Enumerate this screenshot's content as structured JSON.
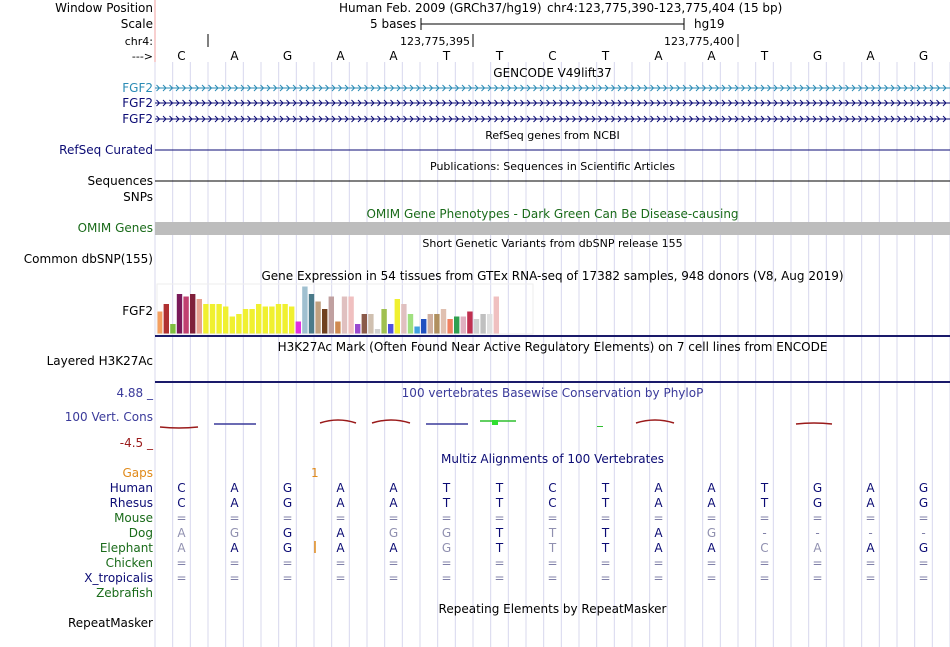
{
  "header": {
    "window_position_label": "Window Position",
    "scale_label": "Scale",
    "chrom_label": "chr4:",
    "arrow_label": "--->",
    "assembly_text": "Human Feb. 2009 (GRCh37/hg19)",
    "position_text": "chr4:123,775,390-123,775,404 (15 bp)",
    "scale_text": "5 bases",
    "db_text": "hg19",
    "coord_left": "123,775,395",
    "coord_right": "123,775,400"
  },
  "sequence": [
    "C",
    "A",
    "G",
    "A",
    "A",
    "T",
    "T",
    "C",
    "T",
    "A",
    "A",
    "T",
    "G",
    "A",
    "G"
  ],
  "tracks": {
    "gencode": {
      "title": "GENCODE V49lift37",
      "items": [
        "FGF2",
        "FGF2",
        "FGF2"
      ],
      "color": "#2a8bb5"
    },
    "refseq": {
      "title": "RefSeq genes from NCBI",
      "label": "RefSeq Curated",
      "color": "#0b0b74"
    },
    "publications": {
      "title": "Publications: Sequences in Scientific Articles",
      "label1": "Sequences",
      "label2": "SNPs"
    },
    "omim": {
      "title": "OMIM Gene Phenotypes - Dark Green Can Be Disease-causing",
      "label": "OMIM Genes",
      "color": "#1a6b1a"
    },
    "dbsnp": {
      "title": "Short Genetic Variants from dbSNP release 155",
      "label": "Common dbSNP(155)"
    },
    "gtex": {
      "title": "Gene Expression in 54 tissues from GTEx RNA-seq of 17382 samples, 948 donors (V8, Aug 2019)",
      "label": "FGF2"
    },
    "h3k27ac": {
      "title": "H3K27Ac Mark (Often Found Near Active Regulatory Elements) on 7 cell lines from ENCODE",
      "label": "Layered H3K27Ac"
    },
    "phylop": {
      "title": "100 vertebrates Basewise Conservation by PhyloP",
      "label": "100 Vert. Cons",
      "max_label": "4.88 _",
      "min_label": "-4.5 _",
      "color": "#3a3a9a",
      "neg_color": "#9a1a1a"
    },
    "multiz": {
      "title": "Multiz Alignments of 100 Vertebrates",
      "gaps_label": "Gaps",
      "gap_count": "1",
      "species": [
        {
          "name": "Human",
          "color": "#0b0b74",
          "bases": [
            "C",
            "A",
            "G",
            "A",
            "A",
            "T",
            "T",
            "C",
            "T",
            "A",
            "A",
            "T",
            "G",
            "A",
            "G"
          ]
        },
        {
          "name": "Rhesus",
          "color": "#0b0b74",
          "bases": [
            "C",
            "A",
            "G",
            "A",
            "A",
            "T",
            "T",
            "C",
            "T",
            "A",
            "A",
            "T",
            "G",
            "A",
            "G"
          ]
        },
        {
          "name": "Mouse",
          "color": "#1a6b1a",
          "bases": [
            "=",
            "=",
            "=",
            "=",
            "=",
            "=",
            "=",
            "=",
            "=",
            "=",
            "=",
            "=",
            "=",
            "=",
            "="
          ]
        },
        {
          "name": "Dog",
          "color": "#1a6b1a",
          "bases": [
            "A",
            "G",
            "G",
            "A",
            "G",
            "G",
            "T",
            "T",
            "T",
            "A",
            "G",
            "-",
            "-",
            "-",
            "-"
          ]
        },
        {
          "name": "Elephant",
          "color": "#1a6b1a",
          "bases": [
            "A",
            "A",
            "G",
            "A",
            "A",
            "G",
            "T",
            "T",
            "T",
            "A",
            "A",
            "C",
            "A",
            "A",
            "G"
          ]
        },
        {
          "name": "Chicken",
          "color": "#1a6b1a",
          "bases": [
            "=",
            "=",
            "=",
            "=",
            "=",
            "=",
            "=",
            "=",
            "=",
            "=",
            "=",
            "=",
            "=",
            "=",
            "="
          ]
        },
        {
          "name": "X_tropicalis",
          "color": "#0b0b74",
          "bases": [
            "=",
            "=",
            "=",
            "=",
            "=",
            "=",
            "=",
            "=",
            "=",
            "=",
            "=",
            "=",
            "=",
            "=",
            "="
          ]
        },
        {
          "name": "Zebrafish",
          "color": "#1a6b1a",
          "bases": []
        }
      ]
    },
    "repeatmasker": {
      "title": "Repeating Elements by RepeatMasker",
      "label": "RepeatMasker"
    }
  },
  "chart_data": {
    "type": "bar",
    "title": "Gene Expression in 54 tissues from GTEx RNA-seq of 17382 samples, 948 donors (V8, Aug 2019)",
    "values": [
      9,
      12,
      4,
      16,
      15,
      16,
      14,
      12,
      12,
      12,
      11,
      7,
      8,
      10,
      10,
      12,
      11,
      11,
      12,
      12,
      11,
      5,
      19,
      16,
      13,
      10,
      15,
      5,
      15,
      15,
      4,
      8,
      8,
      2,
      10,
      4,
      14,
      12,
      8,
      3,
      6,
      8,
      8,
      10,
      6,
      7,
      7,
      9,
      6,
      8,
      8,
      15,
      0,
      0
    ],
    "colors": [
      "#f4a060",
      "#b03030",
      "#7fbf3f",
      "#7a1a5a",
      "#c04070",
      "#80203a",
      "#e8a090",
      "#f0f030",
      "#f0f030",
      "#f0f030",
      "#f0f030",
      "#f0f030",
      "#f0f030",
      "#f0f030",
      "#f0f030",
      "#f0f030",
      "#f0f030",
      "#f0f030",
      "#f0f030",
      "#f0f030",
      "#f0f030",
      "#e030e0",
      "#a0c0d0",
      "#4a7a8a",
      "#c0a080",
      "#704020",
      "#c0a0a0",
      "#d08a50",
      "#e0c0c0",
      "#f0c0c0",
      "#9a4ad0",
      "#8a5a4a",
      "#d0c0b0",
      "#d0d0d0",
      "#a0c050",
      "#5050e0",
      "#f0f030",
      "#e0c0c0",
      "#a0e080",
      "#40a0e0",
      "#2050c0",
      "#d0b0a0",
      "#b09060",
      "#e0c0b0",
      "#f08060",
      "#30a050",
      "#e0b0c0",
      "#c03050",
      "#d0d0d0",
      "#c0c0c0",
      "#e0e0e0",
      "#f0c0c0",
      "#ffffff",
      "#ffffff"
    ],
    "ylim": [
      0,
      20
    ]
  }
}
